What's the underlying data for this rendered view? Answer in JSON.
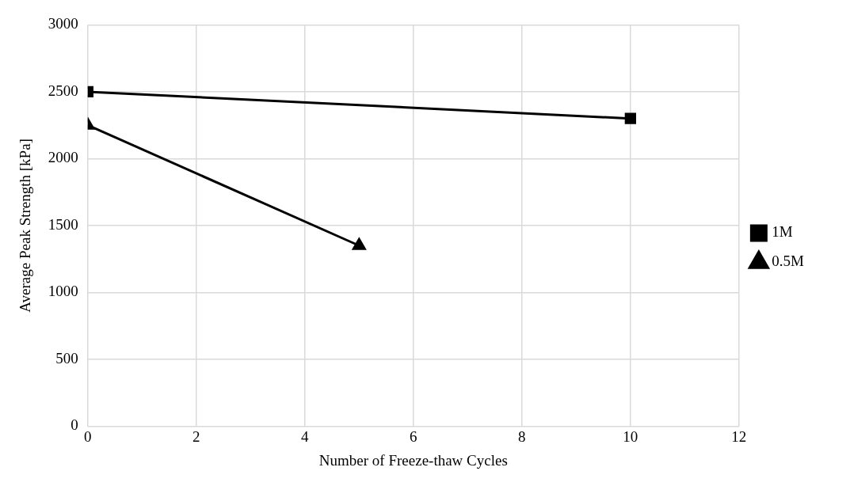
{
  "chart_data": {
    "type": "line",
    "xlabel": "Number of Freeze-thaw Cycles",
    "ylabel": "Average Peak Strength [kPa]",
    "xlim": [
      0,
      12
    ],
    "xticks": [
      0,
      2,
      4,
      6,
      8,
      10,
      12
    ],
    "ylim": [
      0,
      3000
    ],
    "yticks": [
      0,
      500,
      1000,
      1500,
      2000,
      2500,
      3000
    ],
    "grid": true,
    "legend": "right",
    "line_style": "solid",
    "series": [
      {
        "name": "1M",
        "color": "#000000",
        "marker": "square",
        "x": [
          0,
          10
        ],
        "values": [
          2500,
          2300
        ]
      },
      {
        "name": "0.5M",
        "color": "#000000",
        "marker": "triangle",
        "x": [
          0,
          5
        ],
        "values": [
          2250,
          1350
        ]
      }
    ]
  }
}
